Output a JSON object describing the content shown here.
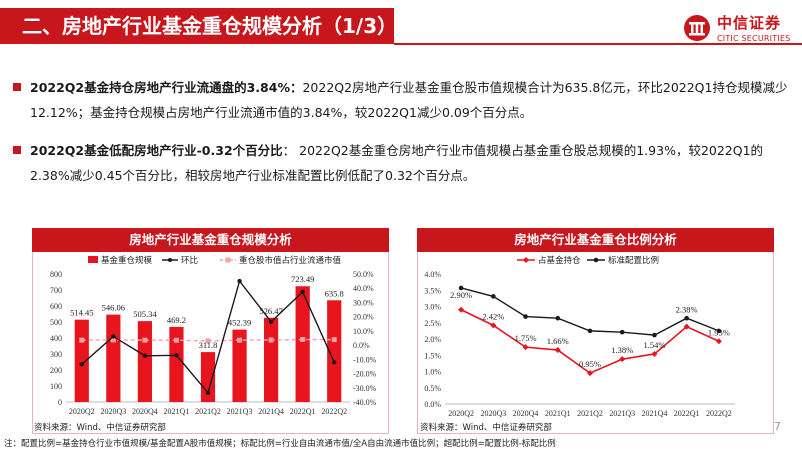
{
  "header": {
    "title": "二、房地产行业基金重仓规模分析（1/3）",
    "logo_cn": "中信证券",
    "logo_en": "CITIC SECURITIES"
  },
  "paragraphs": [
    {
      "bold": "2022Q2基金持仓房地产行业流通盘的3.84%：",
      "text": "2022Q2房地产行业基金重仓股市值规模合计为635.8亿元，环比2022Q1持仓规模减少12.12%；基金持仓规模占房地产行业流通市值的3.84%，较2022Q1减少0.09个百分点。"
    },
    {
      "bold": "2022Q2基金低配房地产行业-0.32个百分比",
      "text": "：     2022Q2基金重仓房地产行业市值规模占基金重仓股总规模的1.93%，较2022Q1的2.38%减少0.45个百分比，相较房地产行业标准配置比例低配了0.32个百分点。"
    }
  ],
  "chart_data": [
    {
      "type": "bar",
      "title": "房地产行业基金重仓规模分析",
      "categories": [
        "2020Q2",
        "2020Q3",
        "2020Q4",
        "2021Q1",
        "2021Q2",
        "2021Q3",
        "2021Q4",
        "2022Q1",
        "2022Q2"
      ],
      "series": [
        {
          "name": "基金重仓规模",
          "type": "bar",
          "axis": "left",
          "color": "#e8141e",
          "values": [
            514.45,
            546.06,
            505.34,
            469.2,
            311.8,
            452.39,
            526.47,
            723.49,
            635.8
          ]
        },
        {
          "name": "环比",
          "type": "line",
          "axis": "right",
          "color": "#1a1a1a",
          "values": [
            -13.5,
            6.1,
            -7.5,
            -7.2,
            -33.5,
            45.0,
            16.4,
            37.4,
            -12.12
          ]
        },
        {
          "name": "重仓股市值占行业流通市值",
          "type": "line",
          "axis": "right",
          "color": "#f4a0a6",
          "dashed": true,
          "values": [
            3.5,
            3.6,
            3.5,
            3.4,
            3.0,
            3.5,
            3.6,
            3.93,
            3.84
          ]
        }
      ],
      "data_labels": [
        "514.45",
        "546.06",
        "505.34",
        "469.2",
        "311.8",
        "452.39",
        "526.47",
        "723.49",
        "635.8"
      ],
      "y_left_ticks": [
        "0",
        "100",
        "200",
        "300",
        "400",
        "500",
        "600",
        "700",
        "800"
      ],
      "y_right_ticks": [
        "50.0%",
        "40.0%",
        "30.0%",
        "20.0%",
        "10.0%",
        "0.0%",
        "-10.0%",
        "-20.0%",
        "-30.0%",
        "-40.0%"
      ],
      "ylim": [
        0,
        800
      ],
      "ylim_right": [
        -40,
        50
      ],
      "legend_position": "top",
      "source": "资料来源：Wind、中信证券研究部"
    },
    {
      "type": "line",
      "title": "房地产行业基金重仓比例分析",
      "categories": [
        "2020Q2",
        "2020Q3",
        "2020Q4",
        "2021Q1",
        "2021Q2",
        "2021Q3",
        "2021Q4",
        "2022Q1",
        "2022Q2"
      ],
      "series": [
        {
          "name": "占基金持仓",
          "color": "#e8141e",
          "values": [
            2.9,
            2.42,
            1.75,
            1.66,
            0.95,
            1.38,
            1.54,
            2.38,
            1.93
          ]
        },
        {
          "name": "标准配置比例",
          "color": "#1a1a1a",
          "values": [
            3.57,
            3.31,
            2.69,
            2.64,
            2.25,
            2.21,
            2.12,
            2.64,
            2.25
          ]
        }
      ],
      "data_labels": [
        "2.90%",
        "2.42%",
        "1.75%",
        "1.66%",
        "0.95%",
        "1.38%",
        "1.54%",
        "2.38%",
        "1.93%"
      ],
      "y_ticks": [
        "0.0%",
        "0.5%",
        "1.0%",
        "1.5%",
        "2.0%",
        "2.5%",
        "3.0%",
        "3.5%",
        "4.0%"
      ],
      "ylim": [
        0,
        4.0
      ],
      "legend_position": "top",
      "source": "资料来源：Wind、中信证券研究部"
    }
  ],
  "footnote": "注：配置比例=基金持仓行业市值规模/基金配置A股市值规模；标配比例=行业自由流通市值/全A自由流通市值比例；超配比例=配置比例-标配比例",
  "page_number": "7"
}
